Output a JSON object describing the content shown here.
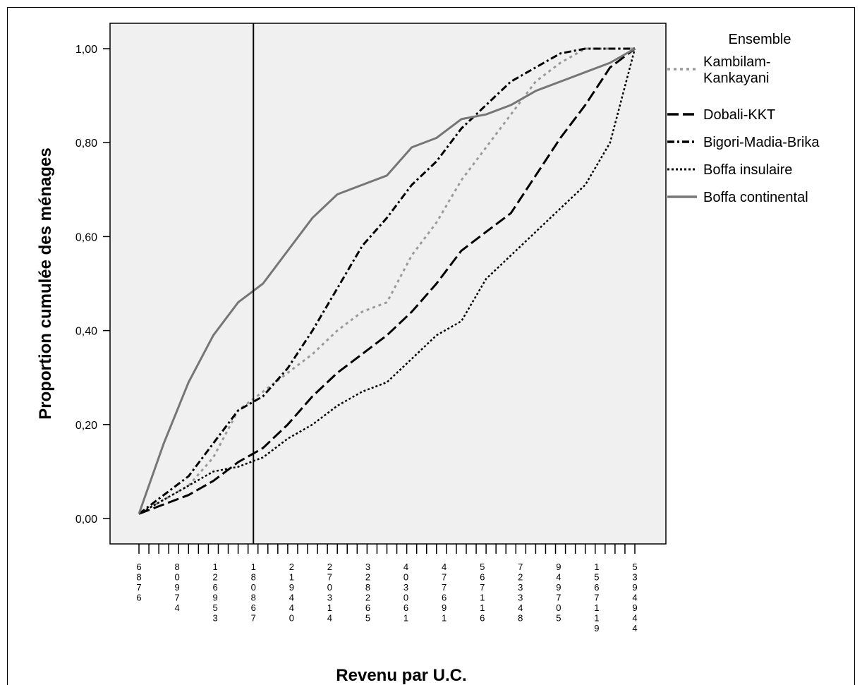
{
  "chart_data": {
    "type": "line",
    "title": "",
    "xlabel": "Revenu par U.C.",
    "ylabel": "Proportion cumulée des ménages",
    "ylim": [
      0,
      1
    ],
    "y_ticks": [
      "0,00",
      "0,20",
      "0,40",
      "0,60",
      "0,80",
      "1,00"
    ],
    "x_tick_labels": [
      "6876",
      "80974",
      "126953",
      "180867",
      "219440",
      "270314",
      "328265",
      "403061",
      "477691",
      "567116",
      "723348",
      "949705",
      "1567119",
      "5394944"
    ],
    "reference_line_x": "180867",
    "grid": false,
    "legend": {
      "title": "Ensemble",
      "placement": "right"
    },
    "x_ranks": [
      0,
      0.05,
      0.1,
      0.15,
      0.2,
      0.25,
      0.3,
      0.35,
      0.4,
      0.45,
      0.5,
      0.55,
      0.6,
      0.65,
      0.7,
      0.75,
      0.8,
      0.85,
      0.9,
      0.95,
      1
    ],
    "series": [
      {
        "name": "Kambilam-Kankayani",
        "color": "#9a9a9a",
        "dash": "dot",
        "values": [
          0.01,
          0.04,
          0.07,
          0.13,
          0.23,
          0.27,
          0.31,
          0.35,
          0.4,
          0.44,
          0.46,
          0.56,
          0.63,
          0.72,
          0.79,
          0.86,
          0.93,
          0.97,
          1.0,
          1.0,
          1.0
        ]
      },
      {
        "name": "Dobali-KKT",
        "color": "#000000",
        "dash": "longdash",
        "values": [
          0.01,
          0.03,
          0.05,
          0.08,
          0.12,
          0.15,
          0.2,
          0.26,
          0.31,
          0.35,
          0.39,
          0.44,
          0.5,
          0.57,
          0.61,
          0.65,
          0.73,
          0.81,
          0.88,
          0.96,
          1.0
        ]
      },
      {
        "name": "Bigori-Madia-Brika",
        "color": "#000000",
        "dash": "dashdot",
        "values": [
          0.01,
          0.05,
          0.09,
          0.16,
          0.23,
          0.26,
          0.32,
          0.4,
          0.49,
          0.58,
          0.64,
          0.71,
          0.76,
          0.83,
          0.88,
          0.93,
          0.96,
          0.99,
          1.0,
          1.0,
          1.0
        ]
      },
      {
        "name": "Boffa insulaire",
        "color": "#000000",
        "dash": "shortdot",
        "values": [
          0.01,
          0.04,
          0.07,
          0.1,
          0.11,
          0.13,
          0.17,
          0.2,
          0.24,
          0.27,
          0.29,
          0.34,
          0.39,
          0.42,
          0.51,
          0.56,
          0.61,
          0.66,
          0.71,
          0.8,
          1.0
        ]
      },
      {
        "name": "Boffa continental",
        "color": "#767676",
        "dash": "solid",
        "values": [
          0.01,
          0.16,
          0.29,
          0.39,
          0.46,
          0.5,
          0.57,
          0.64,
          0.69,
          0.71,
          0.73,
          0.79,
          0.81,
          0.85,
          0.86,
          0.88,
          0.91,
          0.93,
          0.95,
          0.97,
          1.0
        ]
      }
    ]
  }
}
